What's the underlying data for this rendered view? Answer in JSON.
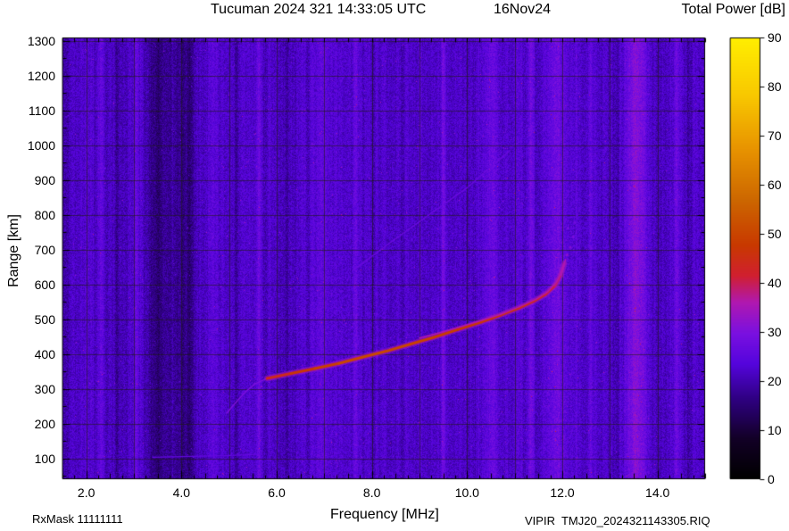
{
  "header": {
    "title": "Tucuman 2024 321 14:33:05 UTC",
    "date": "16Nov24",
    "colorbar_title": "Total Power [dB]"
  },
  "footer": {
    "rxmask": "RxMask 11111111",
    "file": "VIPIR  TMJ20_2024321143305.RIQ"
  },
  "chart_data": {
    "type": "heatmap",
    "title": "Tucuman 2024 321 14:33:05 UTC 16Nov24",
    "xlabel": "Frequency [MHz]",
    "ylabel": "Range [km]",
    "xlim": [
      1.5,
      15.0
    ],
    "ylim": [
      40,
      1310
    ],
    "xtick_values": [
      2,
      4,
      6,
      8,
      10,
      12,
      14
    ],
    "xtick_labels": [
      "2.0",
      "4.0",
      "6.0",
      "8.0",
      "10.0",
      "12.0",
      "14.0"
    ],
    "ytick_values": [
      100,
      200,
      300,
      400,
      500,
      600,
      700,
      800,
      900,
      1000,
      1100,
      1200,
      1300
    ],
    "grid": {
      "x_step_mhz": 1,
      "y_step_km": 100
    },
    "background_db": 22,
    "noise_db": 6.5,
    "colormap": [
      [
        0,
        "#000000"
      ],
      [
        0.09,
        "#120026"
      ],
      [
        0.18,
        "#2e0080"
      ],
      [
        0.26,
        "#5404dc"
      ],
      [
        0.33,
        "#7a10e0"
      ],
      [
        0.4,
        "#b018b0"
      ],
      [
        0.46,
        "#d01f30"
      ],
      [
        0.53,
        "#c83900"
      ],
      [
        0.63,
        "#cc6600"
      ],
      [
        0.75,
        "#e89400"
      ],
      [
        0.87,
        "#f8c800"
      ],
      [
        1,
        "#ffee00"
      ]
    ],
    "colorbar": {
      "label": "Total Power [dB]",
      "min": 0,
      "max": 90,
      "ticks": [
        0,
        10,
        20,
        30,
        40,
        50,
        60,
        70,
        80,
        90
      ]
    },
    "rfi_bands": [
      {
        "freq": 1.55,
        "sigma": 0.08,
        "delta_db": -3
      },
      {
        "freq": 2.0,
        "sigma": 0.1,
        "delta_db": 2
      },
      {
        "freq": 2.3,
        "sigma": 0.04,
        "delta_db": 4
      },
      {
        "freq": 2.7,
        "sigma": 0.12,
        "delta_db": -2.5
      },
      {
        "freq": 3.05,
        "sigma": 0.03,
        "delta_db": 5
      },
      {
        "freq": 3.45,
        "sigma": 0.12,
        "delta_db": -5
      },
      {
        "freq": 3.8,
        "sigma": 0.25,
        "delta_db": -4
      },
      {
        "freq": 4.15,
        "sigma": 0.1,
        "delta_db": -5
      },
      {
        "freq": 4.65,
        "sigma": 0.06,
        "delta_db": 4
      },
      {
        "freq": 5.15,
        "sigma": 0.1,
        "delta_db": -2
      },
      {
        "freq": 5.6,
        "sigma": 0.05,
        "delta_db": 4
      },
      {
        "freq": 6.2,
        "sigma": 0.08,
        "delta_db": -2
      },
      {
        "freq": 6.9,
        "sigma": 0.15,
        "delta_db": 2.5
      },
      {
        "freq": 7.65,
        "sigma": 0.03,
        "delta_db": 4
      },
      {
        "freq": 9.5,
        "sigma": 0.035,
        "delta_db": 6
      },
      {
        "freq": 10.5,
        "sigma": 0.1,
        "delta_db": 5
      },
      {
        "freq": 11.35,
        "sigma": 0.04,
        "delta_db": 5
      },
      {
        "freq": 11.9,
        "sigma": 0.15,
        "delta_db": 5
      },
      {
        "freq": 12.35,
        "sigma": 0.04,
        "delta_db": 3
      },
      {
        "freq": 12.6,
        "sigma": 0.04,
        "delta_db": 4
      },
      {
        "freq": 13.1,
        "sigma": 0.08,
        "delta_db": -2.5
      },
      {
        "freq": 13.55,
        "sigma": 0.14,
        "delta_db": 8.5
      },
      {
        "freq": 14.4,
        "sigma": 0.05,
        "delta_db": 4
      },
      {
        "freq": 14.65,
        "sigma": 0.06,
        "delta_db": -2
      }
    ],
    "traces": [
      {
        "name": "f-region-leading-edge",
        "power_db": 30,
        "width": 1.5,
        "halo": false,
        "points": [
          [
            4.95,
            230
          ],
          [
            5.15,
            262
          ],
          [
            5.35,
            292
          ],
          [
            5.55,
            315
          ],
          [
            5.8,
            330
          ]
        ]
      },
      {
        "name": "f-region-o-trace",
        "power_db": 48,
        "width": 3,
        "halo": true,
        "points": [
          [
            5.8,
            330,
            42
          ],
          [
            6.3,
            344,
            46
          ],
          [
            6.8,
            358,
            48
          ],
          [
            7.3,
            373,
            50
          ],
          [
            7.8,
            391,
            51
          ],
          [
            8.3,
            408,
            51
          ],
          [
            8.8,
            428,
            50
          ],
          [
            9.3,
            448,
            49
          ],
          [
            9.8,
            470,
            48
          ],
          [
            10.3,
            492,
            47
          ],
          [
            10.7,
            512,
            46
          ],
          [
            11.1,
            533,
            45
          ],
          [
            11.4,
            552,
            44
          ],
          [
            11.65,
            572,
            42
          ],
          [
            11.85,
            597,
            40
          ],
          [
            11.97,
            628,
            37
          ],
          [
            12.04,
            660,
            34
          ]
        ]
      },
      {
        "name": "f-region-x-trace",
        "power_db": 36,
        "width": 1.5,
        "halo": false,
        "points": [
          [
            9.0,
            446
          ],
          [
            9.6,
            468
          ],
          [
            10.2,
            492
          ],
          [
            10.7,
            514
          ],
          [
            11.1,
            536
          ],
          [
            11.45,
            558
          ],
          [
            11.7,
            580
          ],
          [
            11.88,
            608
          ],
          [
            11.99,
            640
          ],
          [
            12.07,
            672
          ]
        ]
      },
      {
        "name": "oblique-echo-trace",
        "power_db": 27,
        "width": 1.3,
        "halo": false,
        "points": [
          [
            7.6,
            640
          ],
          [
            8.4,
            722
          ],
          [
            9.2,
            800
          ],
          [
            10.0,
            878
          ],
          [
            10.9,
            985
          ]
        ]
      },
      {
        "name": "sporadic-e-trace",
        "power_db": 26,
        "width": 1.2,
        "halo": false,
        "points": [
          [
            3.4,
            103
          ],
          [
            4.2,
            106
          ],
          [
            5.0,
            108
          ],
          [
            5.7,
            112
          ]
        ]
      }
    ],
    "spread_f_echoes": [
      [
        12.1,
        685,
        32
      ],
      [
        12.17,
        707,
        31
      ],
      [
        12.23,
        737,
        30
      ],
      [
        12.12,
        762,
        29
      ],
      [
        12.26,
        778,
        28
      ],
      [
        12.31,
        800,
        26
      ]
    ]
  }
}
